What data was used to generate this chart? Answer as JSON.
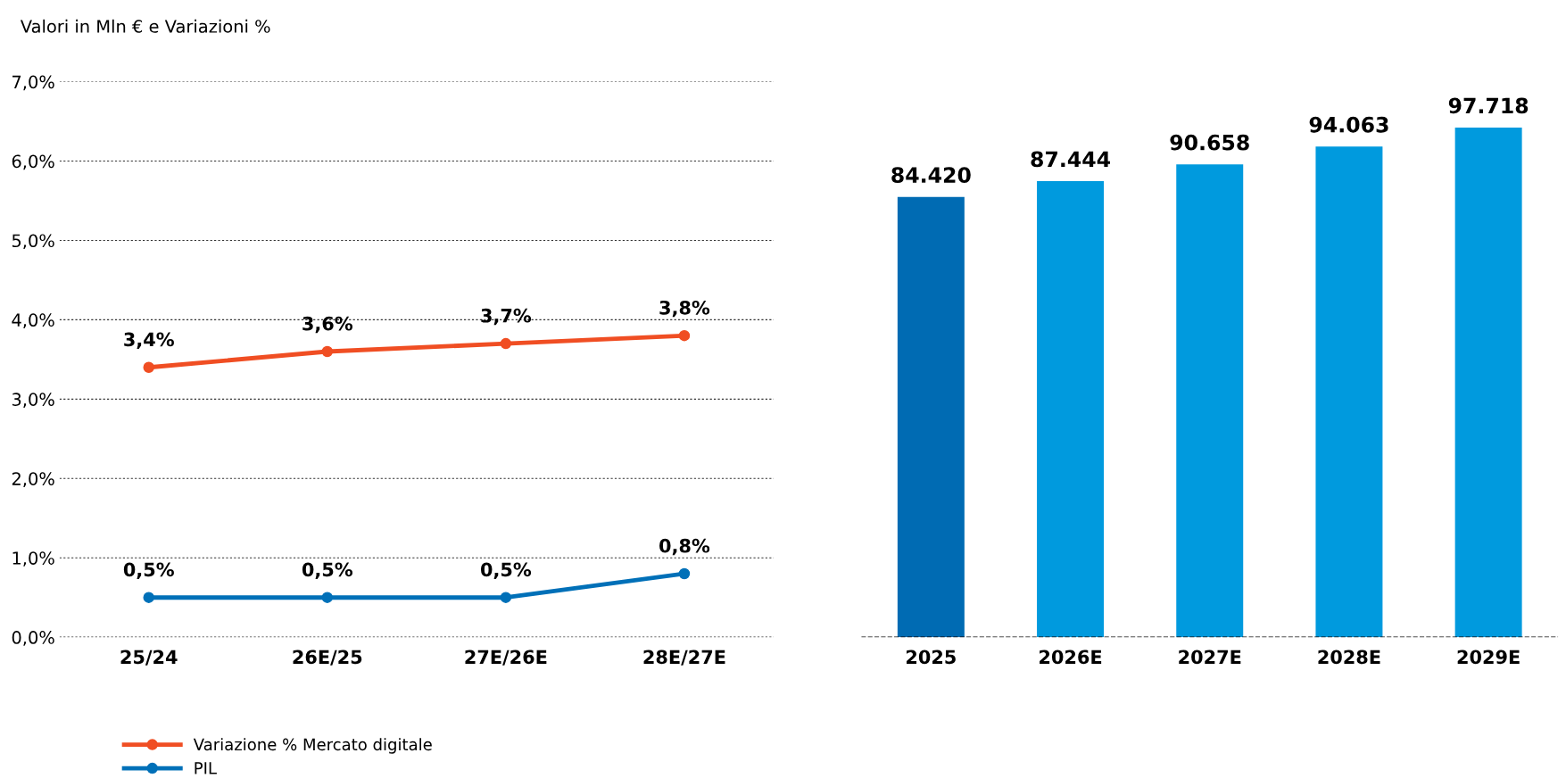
{
  "chart_data": [
    {
      "type": "line",
      "title": "Valori in Mln € e Variazioni %",
      "categories": [
        "25/24",
        "26E/25",
        "27E/26E",
        "28E/27E"
      ],
      "series": [
        {
          "name": "Variazione % Mercato digitale",
          "color": "#f04e23",
          "values": [
            3.4,
            3.6,
            3.7,
            3.8
          ],
          "value_labels": [
            "3,4%",
            "3,6%",
            "3,7%",
            "3,8%"
          ]
        },
        {
          "name": "PIL",
          "color": "#0070b8",
          "values": [
            0.5,
            0.5,
            0.5,
            0.8
          ],
          "value_labels": [
            "0,5%",
            "0,5%",
            "0,5%",
            "0,8%"
          ]
        }
      ],
      "ylim": [
        0,
        7
      ],
      "yticks": [
        {
          "value": 0,
          "label": "0,0%"
        },
        {
          "value": 1,
          "label": "1,0%"
        },
        {
          "value": 2,
          "label": "2,0%"
        },
        {
          "value": 3,
          "label": "3,0%"
        },
        {
          "value": 4,
          "label": "4,0%"
        },
        {
          "value": 5,
          "label": "5,0%"
        },
        {
          "value": 6,
          "label": "6,0%"
        },
        {
          "value": 7,
          "label": "7,0%"
        }
      ],
      "grid": "y",
      "marker": "circle",
      "line_style": "solid",
      "legend": "bottom"
    },
    {
      "type": "bar",
      "categories": [
        "2025",
        "2026E",
        "2027E",
        "2028E",
        "2029E"
      ],
      "values": [
        84420,
        87444,
        90658,
        94063,
        97718
      ],
      "colors": [
        "#006bb3",
        "#009ade",
        "#009ade",
        "#009ade",
        "#009ade"
      ],
      "value_labels": [
        "84.420",
        "87.444",
        "90.658",
        "94.063",
        "97.718"
      ],
      "ref_lines": [
        {
          "axis": "y",
          "value": 0,
          "line_style": "dashed",
          "color": "#000000"
        }
      ],
      "tick_labels": "x"
    }
  ]
}
